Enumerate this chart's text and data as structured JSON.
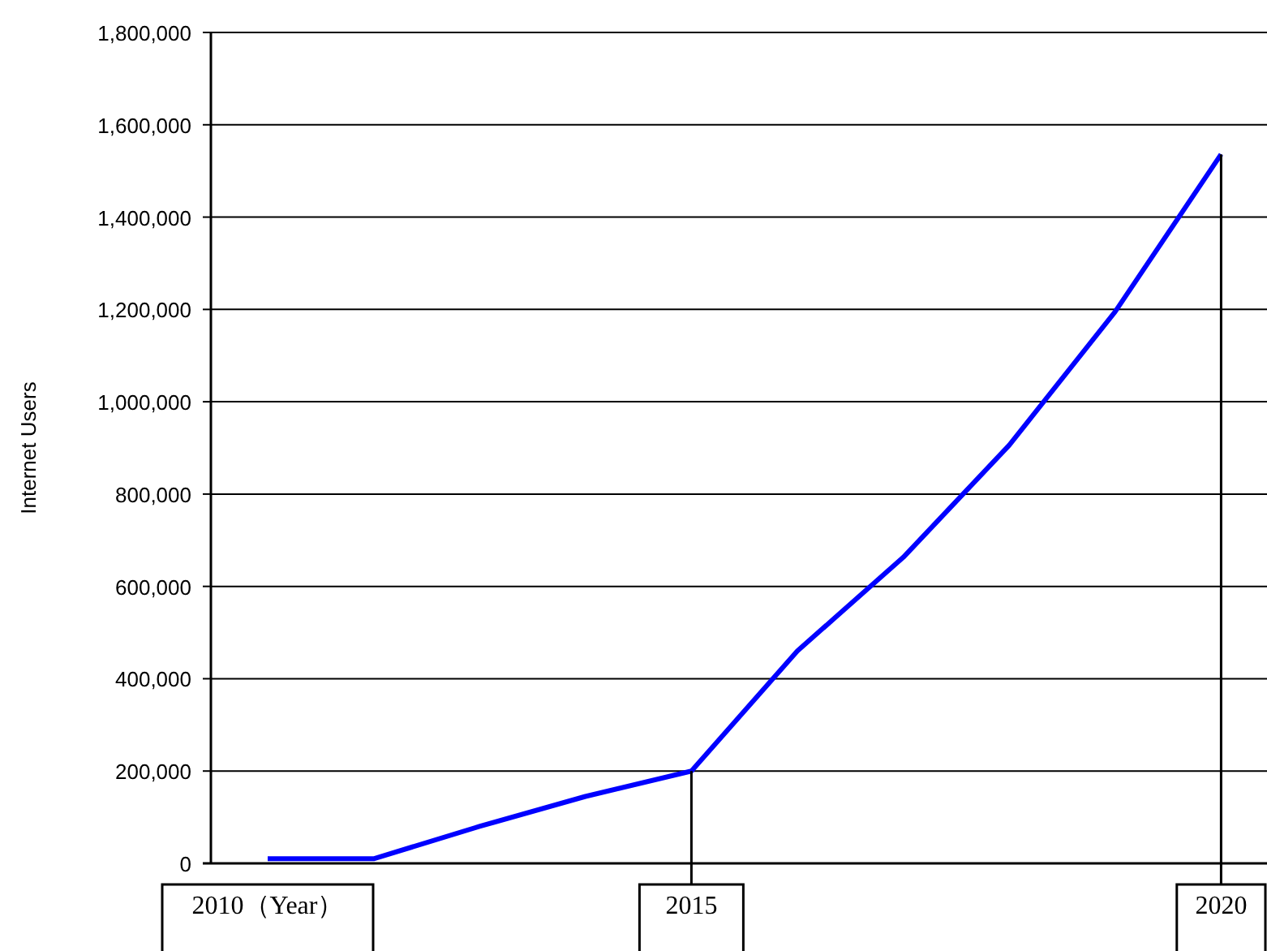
{
  "chart_data": {
    "type": "line",
    "ylabel": "Internet Users",
    "categories": [
      "2010（Year）",
      null,
      null,
      null,
      "2015",
      null,
      null,
      null,
      null,
      "2020"
    ],
    "series": [
      {
        "color": "#0000ff",
        "values": [
          10000,
          10000,
          80000,
          145000,
          200000,
          460000,
          663000,
          906000,
          1195000,
          1536000
        ]
      }
    ],
    "ylim": [
      0,
      1800000
    ],
    "yticks": [
      {
        "value": 0,
        "label": "0"
      },
      {
        "value": 200000,
        "label": "200,000"
      },
      {
        "value": 400000,
        "label": "400,000"
      },
      {
        "value": 600000,
        "label": "600,000"
      },
      {
        "value": 800000,
        "label": "800,000"
      },
      {
        "value": 1000000,
        "label": "1,000,000"
      },
      {
        "value": 1200000,
        "label": "1,200,000"
      },
      {
        "value": 1400000,
        "label": "1,400,000"
      },
      {
        "value": 1600000,
        "label": "1,600,000"
      },
      {
        "value": 1800000,
        "label": "1,800,000"
      }
    ],
    "ref_lines": [
      {
        "axis": "x",
        "value": "2015"
      },
      {
        "axis": "x",
        "value": "2020"
      }
    ],
    "grid": "y",
    "marker": "none",
    "line_style": "solid"
  }
}
